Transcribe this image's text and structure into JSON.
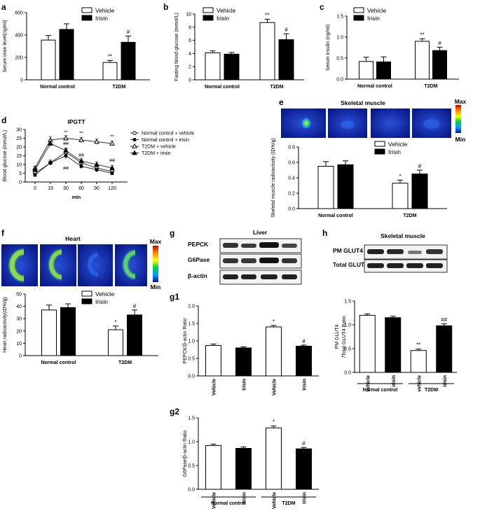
{
  "colors": {
    "vehicle": "#ffffff",
    "irisin": "#000000",
    "axis": "#000000"
  },
  "panels": {
    "a": {
      "label": "a"
    },
    "b": {
      "label": "b"
    },
    "c": {
      "label": "c"
    },
    "d": {
      "label": "d"
    },
    "e": {
      "label": "e"
    },
    "f": {
      "label": "f"
    },
    "g": {
      "label": "g"
    },
    "g1": {
      "label": "g1"
    },
    "g2": {
      "label": "g2"
    },
    "h": {
      "label": "h"
    }
  },
  "imaging": {
    "skeletal_title": "Skeletal muscle",
    "heart_title": "Heart",
    "max_label": "Max",
    "min_label": "Min"
  },
  "blots": {
    "liver": {
      "title": "Liver",
      "rows": [
        "PEPCK",
        "G6Pase",
        "β-actin"
      ]
    },
    "skeletal": {
      "title": "Skeletal muscle",
      "rows": [
        "PM GLUT4",
        "Total GLUT4"
      ]
    }
  },
  "chart_data": [
    {
      "id": "a",
      "type": "bar",
      "ylabel": "Serum irisin level(ng/ml)",
      "ylim": [
        0,
        600
      ],
      "yticks": [
        0,
        200,
        400,
        600
      ],
      "categories": [
        "Normal control",
        "T2DM"
      ],
      "legend": [
        "Vehicle",
        "Irisin"
      ],
      "series": [
        {
          "name": "Vehicle",
          "values": [
            355,
            155
          ],
          "err": [
            40,
            18
          ]
        },
        {
          "name": "Irisin",
          "values": [
            450,
            335
          ],
          "err": [
            50,
            55
          ]
        }
      ],
      "annotations": {
        "t2dm_vehicle": "**",
        "t2dm_irisin": "#"
      }
    },
    {
      "id": "b",
      "type": "bar",
      "ylabel": "Fasting blood glucose (mmol/L)",
      "ylim": [
        0,
        10
      ],
      "yticks": [
        0,
        2,
        4,
        6,
        8,
        10
      ],
      "categories": [
        "Normal control",
        "T2DM"
      ],
      "legend": [
        "Vehicle",
        "Irisin"
      ],
      "series": [
        {
          "name": "Vehicle",
          "values": [
            4.1,
            8.7
          ],
          "err": [
            0.3,
            0.5
          ]
        },
        {
          "name": "Irisin",
          "values": [
            3.9,
            6.1
          ],
          "err": [
            0.25,
            0.9
          ]
        }
      ],
      "annotations": {
        "t2dm_vehicle": "**",
        "t2dm_irisin": "#"
      }
    },
    {
      "id": "c",
      "type": "bar",
      "ylabel": "Serum insulin (ng/ml)",
      "ylim": [
        0,
        1.5
      ],
      "yticks": [
        0.0,
        0.5,
        1.0,
        1.5
      ],
      "categories": [
        "Normal control",
        "T2DM"
      ],
      "legend": [
        "Vehicle",
        "Irisin"
      ],
      "series": [
        {
          "name": "Vehicle",
          "values": [
            0.42,
            0.9
          ],
          "err": [
            0.1,
            0.06
          ]
        },
        {
          "name": "Irisin",
          "values": [
            0.41,
            0.68
          ],
          "err": [
            0.12,
            0.08
          ]
        }
      ],
      "annotations": {
        "t2dm_vehicle": "**",
        "t2dm_irisin": "#"
      }
    },
    {
      "id": "d",
      "type": "line",
      "title": "IPGTT",
      "xlabel": "min",
      "ylabel": "Blood glucose (mmol/L)",
      "x": [
        0,
        15,
        30,
        60,
        90,
        120
      ],
      "xticks": [
        0,
        15,
        30,
        60,
        90,
        120
      ],
      "ylim": [
        0,
        30
      ],
      "yticks": [
        0,
        5,
        10,
        15,
        20,
        25,
        30
      ],
      "series": [
        {
          "name": "Normal control + vehicle",
          "marker": "circle",
          "values": [
            5,
            11,
            17,
            11,
            8,
            6
          ],
          "err": [
            1,
            1.5,
            2,
            1.5,
            1.5,
            1.5
          ]
        },
        {
          "name": "Normal control + irisin",
          "marker": "square",
          "values": [
            4,
            11,
            15,
            9,
            7,
            5
          ],
          "err": [
            1,
            1.5,
            2,
            1.5,
            1.5,
            1
          ]
        },
        {
          "name": "T2DM + vehicle",
          "marker": "triangle-open",
          "values": [
            8,
            24,
            25,
            24,
            23,
            22
          ],
          "err": [
            1,
            2,
            1.5,
            1.5,
            1.5,
            1.5
          ]
        },
        {
          "name": "T2DM + irisin",
          "marker": "triangle",
          "values": [
            7,
            22,
            18,
            12,
            10,
            8
          ],
          "err": [
            1,
            2,
            1.5,
            1.5,
            1.5,
            1.5
          ]
        }
      ],
      "annotations": [
        {
          "x": 30,
          "y": 27.5,
          "text": "**"
        },
        {
          "x": 60,
          "y": 27,
          "text": "**"
        },
        {
          "x": 120,
          "y": 25,
          "text": "**"
        },
        {
          "x": 30,
          "y": 7,
          "text": "##"
        },
        {
          "x": 60,
          "y": 14.5,
          "text": "##"
        },
        {
          "x": 120,
          "y": 11.5,
          "text": "##"
        },
        {
          "x": 30,
          "y": 21,
          "text": "##"
        }
      ]
    },
    {
      "id": "e",
      "type": "bar",
      "ylabel": "Skeletal muscle radioactivity (ID%/g)",
      "ylim": [
        0,
        0.8
      ],
      "yticks": [
        0.0,
        0.2,
        0.4,
        0.6,
        0.8
      ],
      "categories": [
        "Normal control",
        "T2DM"
      ],
      "legend": [
        "Vehicle",
        "Irisin"
      ],
      "series": [
        {
          "name": "Vehicle",
          "values": [
            0.55,
            0.33
          ],
          "err": [
            0.06,
            0.04
          ]
        },
        {
          "name": "Irisin",
          "values": [
            0.57,
            0.45
          ],
          "err": [
            0.05,
            0.05
          ]
        }
      ],
      "annotations": {
        "t2dm_vehicle": "*",
        "t2dm_irisin": "#"
      }
    },
    {
      "id": "f",
      "type": "bar",
      "ylabel": "Heart radioactivity(ID%/g)",
      "ylim": [
        0,
        50
      ],
      "yticks": [
        0,
        10,
        20,
        30,
        40,
        50
      ],
      "categories": [
        "Normal control",
        "T2DM"
      ],
      "legend": [
        "Vehicle",
        "Irisin"
      ],
      "series": [
        {
          "name": "Vehicle",
          "values": [
            37,
            21
          ],
          "err": [
            4,
            3
          ]
        },
        {
          "name": "Irisin",
          "values": [
            39,
            33
          ],
          "err": [
            3,
            4
          ]
        }
      ],
      "annotations": {
        "t2dm_vehicle": "*",
        "t2dm_irisin": "#"
      }
    },
    {
      "id": "g1",
      "type": "bar",
      "ylabel": "PEPCK/β-actin Ratio",
      "ylim": [
        0,
        2.0
      ],
      "yticks": [
        0.0,
        0.5,
        1.0,
        1.5,
        2.0
      ],
      "categories": [
        "Vehicle",
        "Irisin",
        "Vehicle",
        "Irisin"
      ],
      "values": [
        0.87,
        0.8,
        1.4,
        0.85
      ],
      "err": [
        0.04,
        0.03,
        0.04,
        0.03
      ],
      "annotations": [
        "",
        "",
        "*",
        "#"
      ]
    },
    {
      "id": "g2",
      "type": "bar",
      "ylabel": "G6Pase/β-actin Ratio",
      "ylim": [
        0,
        1.5
      ],
      "yticks": [
        0.0,
        0.5,
        1.0,
        1.5
      ],
      "categories": [
        "Vehicle",
        "Irisin",
        "Vehicle",
        "Irisin"
      ],
      "groups": [
        "Normal control",
        "T2DM"
      ],
      "values": [
        0.92,
        0.86,
        1.29,
        0.85
      ],
      "err": [
        0.03,
        0.03,
        0.04,
        0.03
      ],
      "annotations": [
        "",
        "",
        "*",
        "#"
      ]
    },
    {
      "id": "h",
      "type": "bar",
      "ylabel": "PM GLUT4 /Total GLUT4 Ratio",
      "ylim": [
        0,
        1.5
      ],
      "yticks": [
        0.0,
        0.5,
        1.0,
        1.5
      ],
      "categories": [
        "vehicle",
        "irisin",
        "vehicle",
        "irisin"
      ],
      "groups": [
        "Normal control",
        "T2DM"
      ],
      "values": [
        1.2,
        1.15,
        0.46,
        0.98
      ],
      "err": [
        0.03,
        0.03,
        0.03,
        0.04
      ],
      "annotations": [
        "",
        "",
        "**",
        "##"
      ]
    }
  ]
}
